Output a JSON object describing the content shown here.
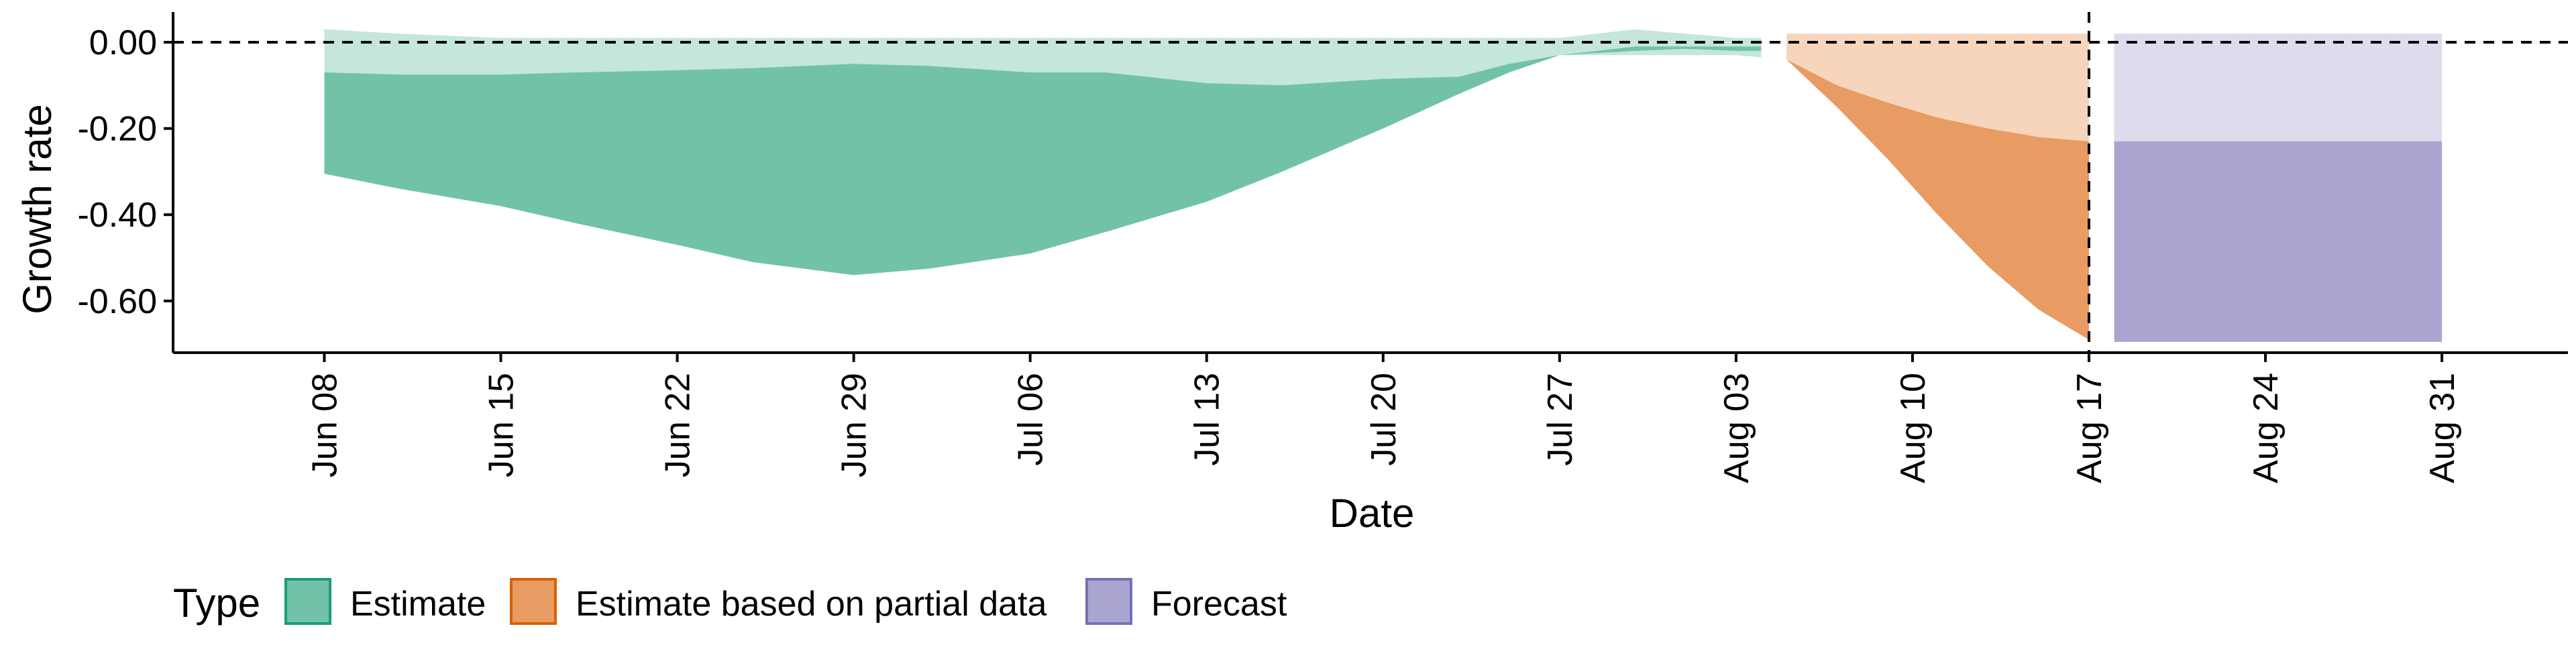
{
  "chart_data": {
    "type": "area",
    "xlabel": "Date",
    "ylabel": "Growth rate",
    "ylim": [
      -0.72,
      0.07
    ],
    "xlim": [
      "2020-06-02",
      "2020-09-05"
    ],
    "y_ticks": [
      0.0,
      -0.2,
      -0.4,
      -0.6
    ],
    "y_tick_labels": [
      "0.00",
      "-0.20",
      "-0.40",
      "-0.60"
    ],
    "x_ticks": [
      "2020-06-08",
      "2020-06-15",
      "2020-06-22",
      "2020-06-29",
      "2020-07-06",
      "2020-07-13",
      "2020-07-20",
      "2020-07-27",
      "2020-08-03",
      "2020-08-10",
      "2020-08-17",
      "2020-08-24",
      "2020-08-31"
    ],
    "x_tick_labels": [
      "Jun 08",
      "Jun 15",
      "Jun 22",
      "Jun 29",
      "Jul 06",
      "Jul 13",
      "Jul 20",
      "Jul 27",
      "Aug 03",
      "Aug 10",
      "Aug 17",
      "Aug 24",
      "Aug 31"
    ],
    "reference_lines": {
      "horizontal_y": 0.0,
      "vertical_x": "2020-08-17",
      "style": "dashed"
    },
    "legend": {
      "title": "Type",
      "position": "bottom-left",
      "entries": [
        "Estimate",
        "Estimate based on partial data",
        "Forecast"
      ]
    },
    "colors": {
      "Estimate": {
        "inner": "#72c2aa",
        "outer": "#c5e6dc",
        "border": "#1b9e77"
      },
      "Estimate based on partial data": {
        "inner": "#e89b62",
        "outer": "#f6d5bc",
        "border": "#d95f02"
      },
      "Forecast": {
        "inner": "#a9a5d0",
        "outer": "#dddbec",
        "border": "#7570b3"
      }
    },
    "series": [
      {
        "name": "Estimate",
        "x": [
          "2020-06-08",
          "2020-06-11",
          "2020-06-15",
          "2020-06-18",
          "2020-06-22",
          "2020-06-25",
          "2020-06-29",
          "2020-07-02",
          "2020-07-06",
          "2020-07-09",
          "2020-07-13",
          "2020-07-16",
          "2020-07-20",
          "2020-07-23",
          "2020-07-25",
          "2020-07-27",
          "2020-07-30",
          "2020-08-01",
          "2020-08-03",
          "2020-08-04"
        ],
        "outer_upper": [
          0.03,
          0.02,
          0.01,
          0.01,
          0.01,
          0.01,
          0.01,
          0.01,
          0.01,
          0.01,
          0.01,
          0.01,
          0.01,
          0.01,
          0.01,
          0.01,
          0.03,
          0.02,
          0.01,
          0.01
        ],
        "inner_upper": [
          -0.07,
          -0.075,
          -0.075,
          -0.07,
          -0.065,
          -0.06,
          -0.05,
          -0.055,
          -0.07,
          -0.07,
          -0.095,
          -0.1,
          -0.085,
          -0.08,
          -0.05,
          -0.03,
          -0.01,
          -0.01,
          -0.01,
          -0.01
        ],
        "inner_lower": [
          -0.305,
          -0.34,
          -0.38,
          -0.42,
          -0.47,
          -0.51,
          -0.54,
          -0.525,
          -0.49,
          -0.44,
          -0.37,
          -0.3,
          -0.2,
          -0.12,
          -0.07,
          -0.03,
          -0.02,
          -0.015,
          -0.02,
          -0.02
        ],
        "outer_lower": [
          -0.305,
          -0.34,
          -0.38,
          -0.42,
          -0.47,
          -0.51,
          -0.54,
          -0.525,
          -0.49,
          -0.44,
          -0.37,
          -0.3,
          -0.2,
          -0.12,
          -0.07,
          -0.03,
          -0.03,
          -0.03,
          -0.03,
          -0.035
        ]
      },
      {
        "name": "Estimate based on partial data",
        "x": [
          "2020-08-05",
          "2020-08-07",
          "2020-08-09",
          "2020-08-11",
          "2020-08-13",
          "2020-08-15",
          "2020-08-17"
        ],
        "outer_upper": [
          0.02,
          0.02,
          0.02,
          0.02,
          0.02,
          0.02,
          0.02
        ],
        "inner_upper": [
          -0.04,
          -0.1,
          -0.14,
          -0.175,
          -0.2,
          -0.22,
          -0.23
        ],
        "inner_lower": [
          -0.04,
          -0.15,
          -0.27,
          -0.4,
          -0.52,
          -0.62,
          -0.69
        ],
        "outer_lower": [
          -0.04,
          -0.15,
          -0.27,
          -0.4,
          -0.52,
          -0.62,
          -0.69
        ]
      },
      {
        "name": "Forecast",
        "x": [
          "2020-08-18",
          "2020-08-31"
        ],
        "outer_upper": [
          0.02,
          0.02
        ],
        "inner_upper": [
          -0.23,
          -0.23
        ],
        "inner_lower": [
          -0.695,
          -0.695
        ],
        "outer_lower": [
          -0.695,
          -0.695
        ]
      }
    ]
  }
}
